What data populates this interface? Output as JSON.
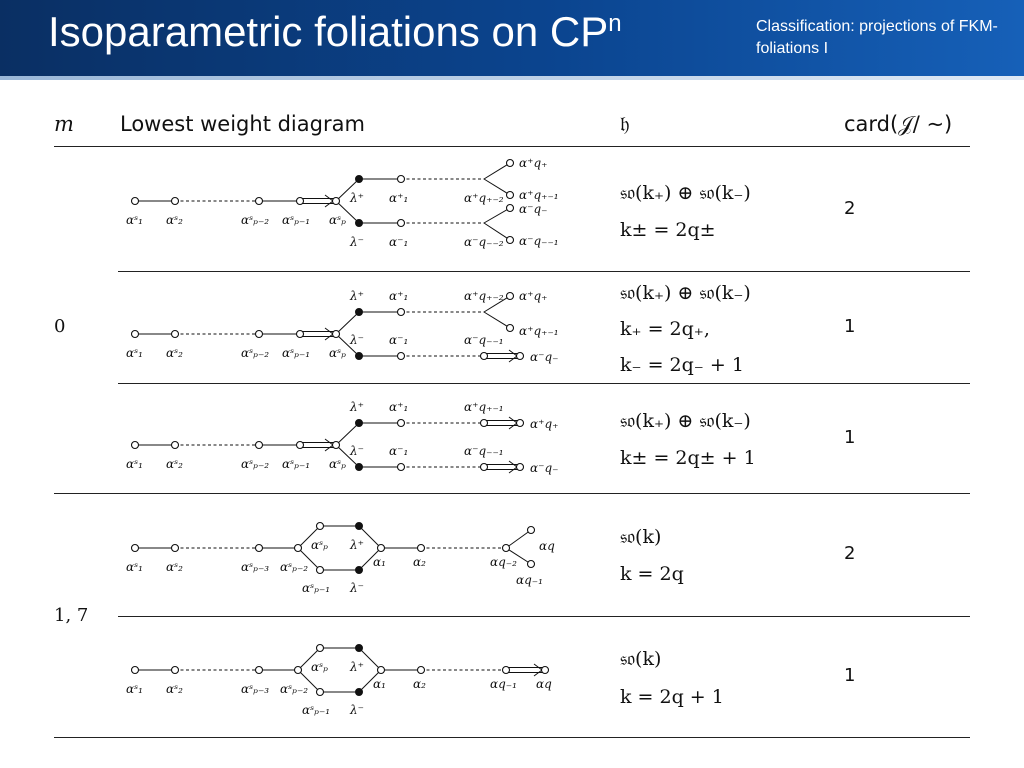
{
  "header": {
    "title": "Isoparametric foliations on CP",
    "title_sup": "n",
    "subtitle": "Classification: projections of FKM-foliations  I"
  },
  "table": {
    "columns": [
      "m",
      "Lowest weight diagram",
      "𝔥",
      "card(𝒥/ ∼)"
    ],
    "groups": [
      {
        "m": "0"
      },
      {
        "m": "1, 7"
      }
    ],
    "rows": [
      {
        "h_lines": [
          "𝔰𝔬(k₊) ⊕ 𝔰𝔬(k₋)",
          "k± = 2q±"
        ],
        "card": "2"
      },
      {
        "h_lines": [
          "𝔰𝔬(k₊) ⊕ 𝔰𝔬(k₋)",
          "k₊ = 2q₊,",
          "k₋ = 2q₋ + 1"
        ],
        "card": "1"
      },
      {
        "h_lines": [
          "𝔰𝔬(k₊) ⊕ 𝔰𝔬(k₋)",
          "k± = 2q± + 1"
        ],
        "card": "1"
      },
      {
        "h_lines": [
          "𝔰𝔬(k)",
          "k = 2q"
        ],
        "card": "2"
      },
      {
        "h_lines": [
          "𝔰𝔬(k)",
          "k = 2q + 1"
        ],
        "card": "1"
      }
    ]
  },
  "diagram_labels": {
    "a1": "αˢ₁",
    "a2": "αˢ₂",
    "ap2": "αˢₚ₋₂",
    "ap1": "αˢₚ₋₁",
    "ap": "αˢₚ",
    "ap3": "αˢₚ₋₃",
    "lp": "λ⁺",
    "lm": "λ⁻",
    "b1p": "α⁺₁",
    "b1m": "α⁻₁",
    "qp2": "α⁺q₊₋₂",
    "qp1": "α⁺q₊₋₁",
    "qp": "α⁺q₊",
    "qm2": "α⁻q₋₋₂",
    "qm1": "α⁻q₋₋₁",
    "qm": "α⁻q₋",
    "c1": "α₁",
    "c2": "α₂",
    "cq2": "αq₋₂",
    "cq1": "αq₋₁",
    "cq": "αq"
  }
}
